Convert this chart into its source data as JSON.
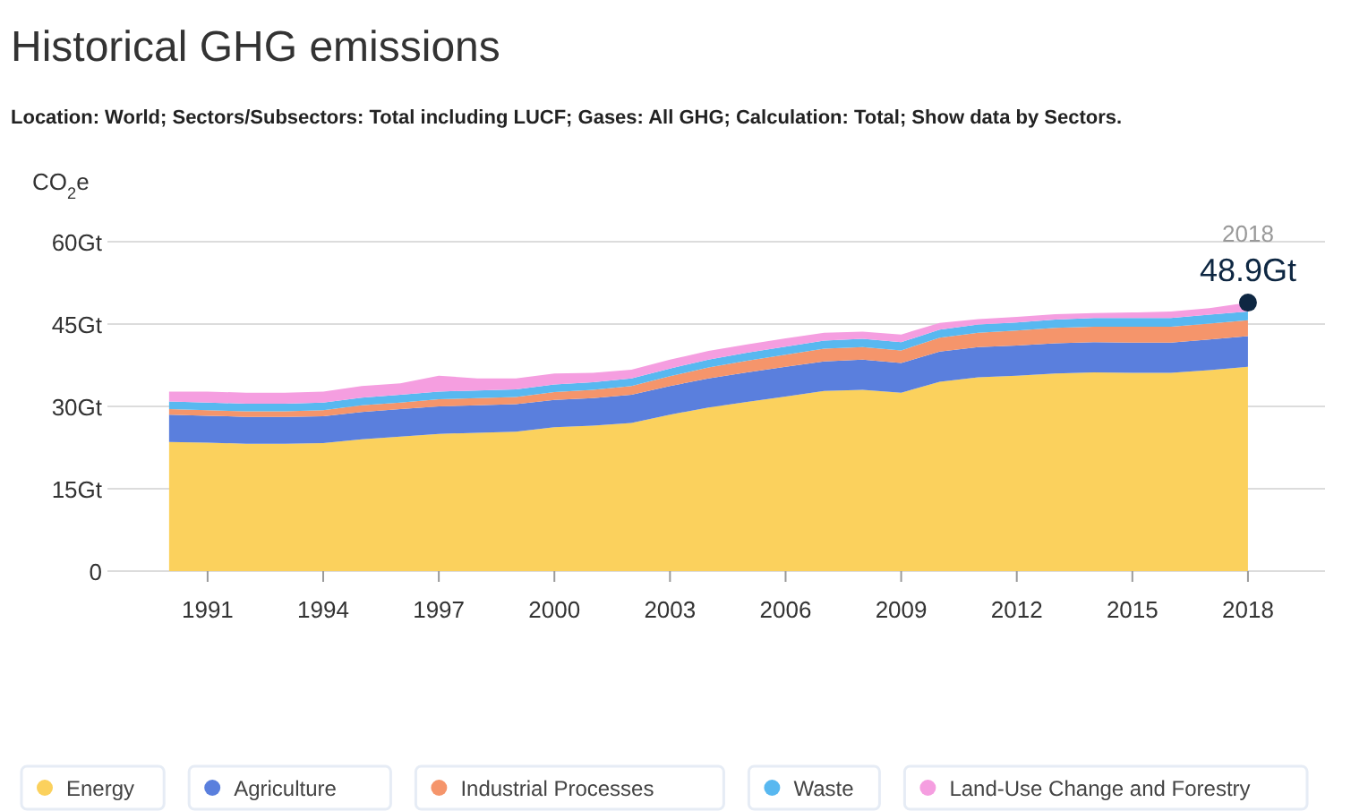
{
  "chart_data": {
    "type": "area",
    "stacked": true,
    "title": "Historical GHG emissions",
    "subtitle": "Location: World; Sectors/Subsectors: Total including LUCF; Gases: All GHG; Calculation: Total; Show data by Sectors.",
    "ylabel": "CO$_{2}$e",
    "x": [
      1990,
      1991,
      1992,
      1993,
      1994,
      1995,
      1996,
      1997,
      1998,
      1999,
      2000,
      2001,
      2002,
      2003,
      2004,
      2005,
      2006,
      2007,
      2008,
      2009,
      2010,
      2011,
      2012,
      2013,
      2014,
      2015,
      2016,
      2017,
      2018
    ],
    "xlim": [
      1988.4,
      2020
    ],
    "xticks": [
      1991,
      1994,
      1997,
      2000,
      2003,
      2006,
      2009,
      2012,
      2015,
      2018
    ],
    "ylim": [
      0,
      60
    ],
    "yticks": [
      {
        "value": 0,
        "label": "0"
      },
      {
        "value": 15,
        "label": "15Gt"
      },
      {
        "value": 30,
        "label": "30Gt"
      },
      {
        "value": 45,
        "label": "45Gt"
      },
      {
        "value": 60,
        "label": "60Gt"
      }
    ],
    "grid": "y",
    "legend": "bottom",
    "series": [
      {
        "name": "Energy",
        "color": "#fbd15d",
        "values": [
          23.5,
          23.4,
          23.2,
          23.2,
          23.3,
          24,
          24.5,
          25,
          25.2,
          25.4,
          26.2,
          26.5,
          27,
          28.5,
          29.8,
          30.8,
          31.8,
          32.8,
          33,
          32.5,
          34.5,
          35.3,
          35.6,
          36,
          36.2,
          36.1,
          36.1,
          36.6,
          37.2
        ]
      },
      {
        "name": "Agriculture",
        "color": "#5a7fdd",
        "values": [
          5.0,
          4.9,
          4.9,
          4.9,
          4.9,
          5.0,
          5.0,
          5.0,
          5.0,
          5.0,
          5.0,
          5.0,
          5.1,
          5.2,
          5.3,
          5.4,
          5.4,
          5.4,
          5.5,
          5.4,
          5.5,
          5.5,
          5.5,
          5.5,
          5.5,
          5.5,
          5.5,
          5.6,
          5.6
        ]
      },
      {
        "name": "Industrial Processes",
        "color": "#f5956b",
        "values": [
          1.0,
          1.0,
          1.0,
          1.0,
          1.1,
          1.2,
          1.2,
          1.3,
          1.3,
          1.3,
          1.4,
          1.5,
          1.6,
          1.8,
          2.0,
          2.1,
          2.2,
          2.3,
          2.3,
          2.3,
          2.5,
          2.6,
          2.7,
          2.8,
          2.8,
          2.9,
          2.9,
          2.9,
          2.9
        ]
      },
      {
        "name": "Waste",
        "color": "#58b8f0",
        "values": [
          1.4,
          1.4,
          1.4,
          1.4,
          1.4,
          1.4,
          1.4,
          1.4,
          1.4,
          1.4,
          1.4,
          1.4,
          1.4,
          1.4,
          1.4,
          1.5,
          1.5,
          1.5,
          1.5,
          1.5,
          1.5,
          1.5,
          1.5,
          1.5,
          1.6,
          1.6,
          1.6,
          1.6,
          1.6
        ]
      },
      {
        "name": "Land-Use Change and Forestry",
        "color": "#f59ee0",
        "values": [
          1.8,
          2.0,
          2.0,
          2.0,
          2.0,
          2.1,
          2.1,
          2.9,
          2.2,
          2.0,
          2.0,
          1.7,
          1.6,
          1.6,
          1.6,
          1.5,
          1.5,
          1.4,
          1.3,
          1.4,
          1.2,
          1.0,
          1.0,
          1.0,
          0.9,
          1.0,
          1.2,
          1.2,
          1.6
        ]
      }
    ],
    "annotations": [
      {
        "text": "2018",
        "x": 2018,
        "y": 48.9
      },
      {
        "text": "48.9Gt",
        "x": 2018,
        "y": 48.9
      }
    ]
  }
}
